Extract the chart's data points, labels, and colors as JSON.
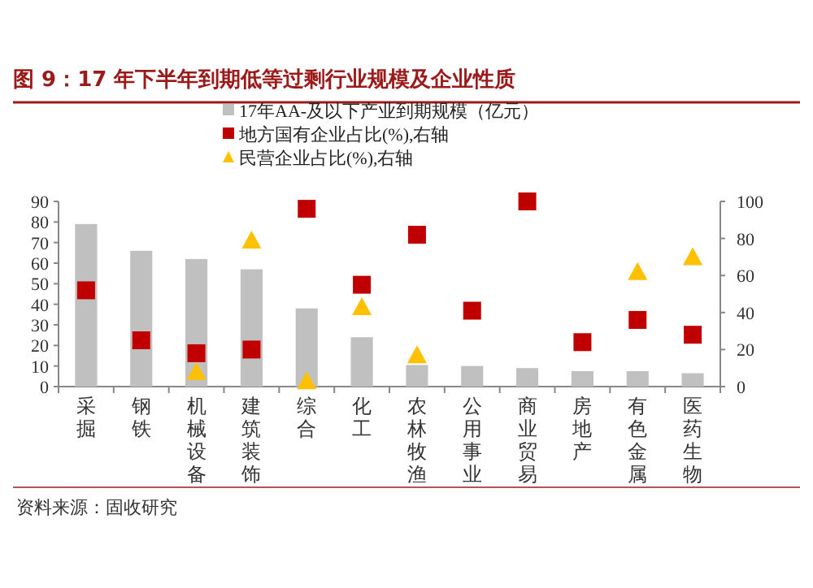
{
  "chart_data": {
    "type": "bar",
    "title": "图 9：17 年下半年到期低等过剩行业规模及企业性质",
    "categories": [
      "采掘",
      "钢铁",
      "机械设备",
      "建筑装饰",
      "综合",
      "化工",
      "农林牧渔",
      "公用事业",
      "商业贸易",
      "房地产",
      "有色金属",
      "医药生物"
    ],
    "series": [
      {
        "name": "17年AA-及以下产业到期规模（亿元）",
        "color": "#c0c0c0",
        "values": [
          79,
          66,
          62,
          57,
          38,
          24,
          10.5,
          10,
          9,
          7.5,
          7.5,
          6.5
        ]
      },
      {
        "name": "地方国有企业占比(%),右轴",
        "type": "scatter",
        "marker": "square",
        "axis": "y2",
        "color": "#c00000",
        "values": [
          52,
          25,
          18,
          20,
          96,
          55,
          82,
          41,
          100,
          24,
          36,
          28
        ]
      },
      {
        "name": "民营企业占比(%),右轴",
        "type": "scatter",
        "marker": "triangle",
        "axis": "y2",
        "color": "#ffc000",
        "values": [
          null,
          null,
          8,
          79,
          3,
          43,
          17,
          null,
          null,
          null,
          62,
          70
        ]
      }
    ],
    "ylim": [
      0,
      90
    ],
    "yticks": [
      0,
      10,
      20,
      30,
      40,
      50,
      60,
      70,
      80,
      90
    ],
    "y2lim": [
      0,
      100
    ],
    "y2ticks": [
      0,
      20,
      40,
      60,
      80,
      100
    ],
    "grid": false,
    "legend": "top",
    "annotations": [
      "资料来源：固收研究"
    ]
  }
}
